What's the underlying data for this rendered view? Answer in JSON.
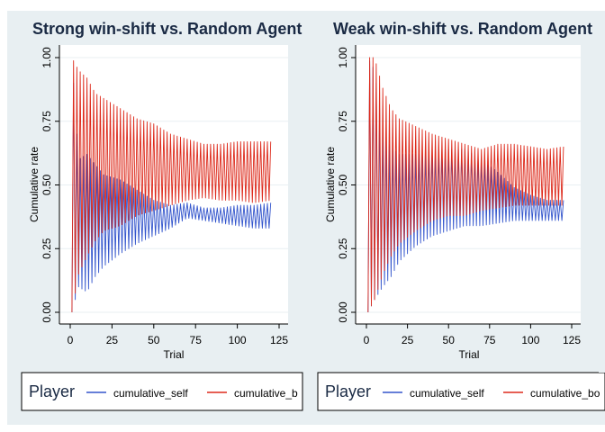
{
  "chart_data": [
    {
      "type": "line",
      "title": "Strong win-shift vs. Random Agent",
      "xlabel": "Trial",
      "ylabel": "Cumulative rate",
      "xlim": [
        0,
        125
      ],
      "ylim": [
        0,
        1
      ],
      "x_ticks": [
        "0",
        "25",
        "50",
        "75",
        "100",
        "125"
      ],
      "y_ticks": [
        "0.00",
        "0.25",
        "0.50",
        "0.75",
        "1.00"
      ],
      "grid": true,
      "x": [
        1,
        5,
        10,
        15,
        20,
        30,
        40,
        50,
        60,
        70,
        80,
        90,
        100,
        110,
        120
      ],
      "series": [
        {
          "name": "cumulative_self",
          "color": "#3355cc",
          "lower": [
            0.0,
            0.1,
            0.08,
            0.14,
            0.18,
            0.23,
            0.27,
            0.3,
            0.33,
            0.37,
            0.36,
            0.35,
            0.34,
            0.33,
            0.33
          ],
          "upper": [
            1.0,
            0.6,
            0.62,
            0.58,
            0.54,
            0.52,
            0.48,
            0.44,
            0.42,
            0.43,
            0.41,
            0.41,
            0.42,
            0.42,
            0.43
          ]
        },
        {
          "name": "cumulative_both",
          "color": "#dd2a1b",
          "lower": [
            0.0,
            0.15,
            0.22,
            0.28,
            0.32,
            0.34,
            0.38,
            0.4,
            0.42,
            0.44,
            0.45,
            0.44,
            0.44,
            0.43,
            0.44
          ],
          "upper": [
            1.0,
            0.95,
            0.92,
            0.86,
            0.84,
            0.8,
            0.76,
            0.74,
            0.7,
            0.68,
            0.66,
            0.66,
            0.67,
            0.67,
            0.67
          ]
        }
      ],
      "legend": {
        "title": "Player",
        "position": "bottom",
        "entries": [
          "cumulative_self",
          "cumulative_b"
        ]
      }
    },
    {
      "type": "line",
      "title": "Weak win-shift vs. Random Agent",
      "xlabel": "Trial",
      "ylabel": "Cumulative rate",
      "xlim": [
        0,
        125
      ],
      "ylim": [
        0,
        1
      ],
      "x_ticks": [
        "0",
        "25",
        "50",
        "75",
        "100",
        "125"
      ],
      "y_ticks": [
        "0.00",
        "0.25",
        "0.50",
        "0.75",
        "1.00"
      ],
      "grid": true,
      "x": [
        1,
        5,
        10,
        15,
        20,
        30,
        40,
        50,
        60,
        70,
        80,
        90,
        100,
        110,
        120
      ],
      "series": [
        {
          "name": "cumulative_self",
          "color": "#3355cc",
          "lower": [
            0.0,
            0.05,
            0.1,
            0.14,
            0.2,
            0.26,
            0.3,
            0.32,
            0.34,
            0.34,
            0.35,
            0.36,
            0.36,
            0.36,
            0.36
          ],
          "upper": [
            1.0,
            0.95,
            0.7,
            0.65,
            0.62,
            0.62,
            0.63,
            0.64,
            0.64,
            0.6,
            0.55,
            0.49,
            0.46,
            0.44,
            0.44
          ]
        },
        {
          "name": "cumulative_both",
          "color": "#dd2a1b",
          "lower": [
            0.0,
            0.05,
            0.15,
            0.22,
            0.27,
            0.32,
            0.36,
            0.38,
            0.38,
            0.4,
            0.41,
            0.42,
            0.42,
            0.42,
            0.42
          ],
          "upper": [
            1.0,
            1.0,
            0.88,
            0.8,
            0.76,
            0.73,
            0.7,
            0.68,
            0.66,
            0.64,
            0.66,
            0.66,
            0.65,
            0.64,
            0.65
          ]
        }
      ],
      "legend": {
        "title": "Player",
        "position": "bottom",
        "entries": [
          "cumulative_self",
          "cumulative_bo"
        ]
      }
    }
  ]
}
